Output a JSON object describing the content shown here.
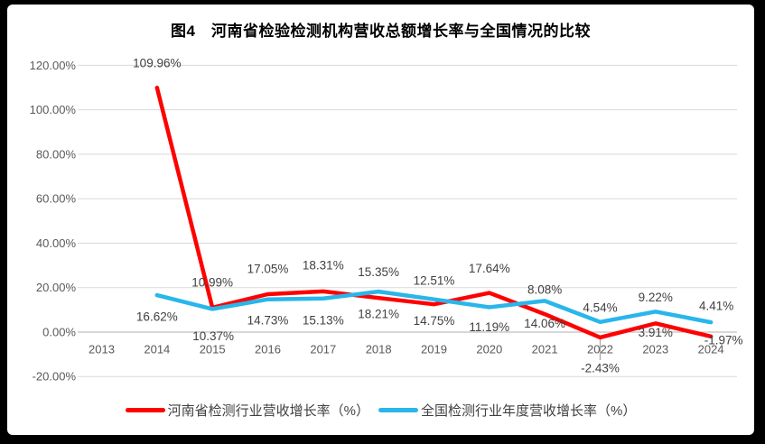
{
  "window": {
    "background": "#000000",
    "card_background": "#ffffff"
  },
  "chart_data": {
    "type": "line",
    "title": "图4　河南省检验检测机构营收总额增长率与全国情况的比较",
    "x": [
      2013,
      2014,
      2015,
      2016,
      2017,
      2018,
      2019,
      2020,
      2021,
      2022,
      2023,
      2024
    ],
    "x_tick_labels": [
      "2013",
      "2014",
      "2015",
      "2016",
      "2017",
      "2018",
      "2019",
      "2020",
      "2021",
      "2022",
      "2023",
      "2024"
    ],
    "series": [
      {
        "name": "河南省检测行业营收增长率（%）",
        "color": "#FF0000",
        "values": [
          null,
          109.96,
          10.99,
          17.05,
          18.31,
          15.35,
          12.51,
          17.64,
          8.08,
          -2.43,
          3.91,
          -1.97
        ],
        "labels": [
          "",
          "109.96%",
          "10.99%",
          "17.05%",
          "18.31%",
          "15.35%",
          "12.51%",
          "17.64%",
          "8.08%",
          "-2.43%",
          "3.91%",
          "-1.97%"
        ]
      },
      {
        "name": "全国检测行业年度营收增长率（%）",
        "color": "#29B6EA",
        "values": [
          null,
          16.62,
          10.37,
          14.73,
          15.13,
          18.21,
          14.75,
          11.19,
          14.06,
          4.54,
          9.22,
          4.41
        ],
        "labels": [
          "",
          "16.62%",
          "10.37%",
          "14.73%",
          "15.13%",
          "18.21%",
          "14.75%",
          "11.19%",
          "14.06%",
          "4.54%",
          "9.22%",
          "4.41%"
        ]
      }
    ],
    "ylim": [
      -20,
      120
    ],
    "yticks": [
      120,
      100,
      80,
      60,
      40,
      20,
      0,
      -20
    ],
    "ytick_labels": [
      "120.00%",
      "100.00%",
      "80.00%",
      "60.00%",
      "40.00%",
      "20.00%",
      "0.00%",
      "-20.00%"
    ],
    "grid": true,
    "legend_position": "bottom",
    "colors": {
      "gridline": "#D9D9D9",
      "axis_line": "#BFBFBF",
      "tick_label": "#595959",
      "data_label": "#404040",
      "leader_line": "#A6A6A6"
    }
  }
}
